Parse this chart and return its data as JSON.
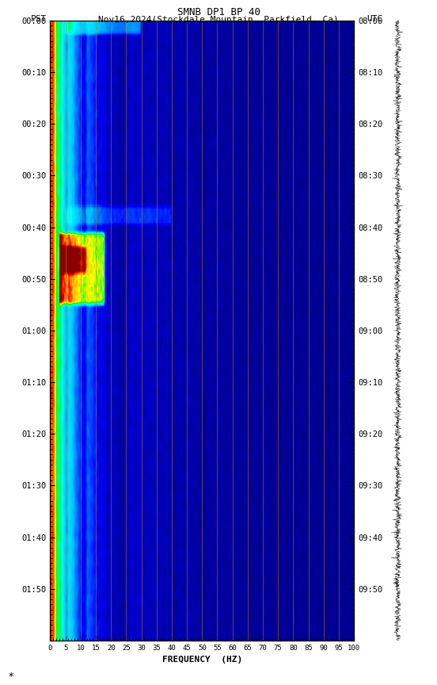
{
  "title_line1": "SMNB DP1 BP 40",
  "title_line2_left": "PST",
  "title_line2_center": "Nov16,2024(Stockdale Mountain, Parkfield, Ca)",
  "title_line2_right": "UTC",
  "xlabel": "FREQUENCY  (HZ)",
  "freq_ticks": [
    0,
    5,
    10,
    15,
    20,
    25,
    30,
    35,
    40,
    45,
    50,
    55,
    60,
    65,
    70,
    75,
    80,
    85,
    90,
    95,
    100
  ],
  "freq_min": 0,
  "freq_max": 100,
  "time_labels_left": [
    "00:00",
    "00:10",
    "00:20",
    "00:30",
    "00:40",
    "00:50",
    "01:00",
    "01:10",
    "01:20",
    "01:30",
    "01:40",
    "01:50"
  ],
  "time_labels_right": [
    "08:00",
    "08:10",
    "08:20",
    "08:30",
    "08:40",
    "08:50",
    "09:00",
    "09:10",
    "09:20",
    "09:30",
    "09:40",
    "09:50"
  ],
  "vertical_line_freq": [
    5,
    10,
    15,
    20,
    25,
    30,
    35,
    40,
    45,
    50,
    55,
    60,
    65,
    70,
    75,
    80,
    85,
    90,
    95,
    100
  ],
  "figure_width": 5.52,
  "figure_height": 8.64,
  "dpi": 100,
  "n_time": 700,
  "n_freq": 500
}
